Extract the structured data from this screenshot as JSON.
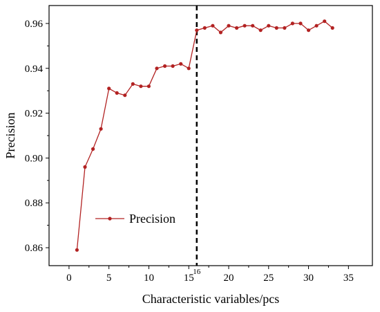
{
  "chart_data": {
    "type": "line",
    "xlabel": "Characteristic variables/pcs",
    "ylabel": "Precision",
    "xlim": [
      -2.5,
      38
    ],
    "ylim": [
      0.852,
      0.968
    ],
    "x_ticks": [
      "0",
      "5",
      "10",
      "15",
      "20",
      "25",
      "30",
      "35"
    ],
    "y_ticks": [
      "0.86",
      "0.88",
      "0.90",
      "0.92",
      "0.94",
      "0.96"
    ],
    "marker_line": {
      "x": 16,
      "label": "16"
    },
    "legend_position": "lower-center",
    "grid": false,
    "series": [
      {
        "name": "Precision",
        "color": "#b22222",
        "x": [
          1,
          2,
          3,
          4,
          5,
          6,
          7,
          8,
          9,
          10,
          11,
          12,
          13,
          14,
          15,
          16,
          17,
          18,
          19,
          20,
          21,
          22,
          23,
          24,
          25,
          26,
          27,
          28,
          29,
          30,
          31,
          32,
          33
        ],
        "values": [
          0.859,
          0.896,
          0.904,
          0.913,
          0.931,
          0.929,
          0.928,
          0.933,
          0.932,
          0.932,
          0.94,
          0.941,
          0.941,
          0.942,
          0.94,
          0.957,
          0.958,
          0.959,
          0.956,
          0.959,
          0.958,
          0.959,
          0.959,
          0.957,
          0.959,
          0.958,
          0.958,
          0.96,
          0.96,
          0.957,
          0.959,
          0.961,
          0.958
        ]
      }
    ]
  }
}
